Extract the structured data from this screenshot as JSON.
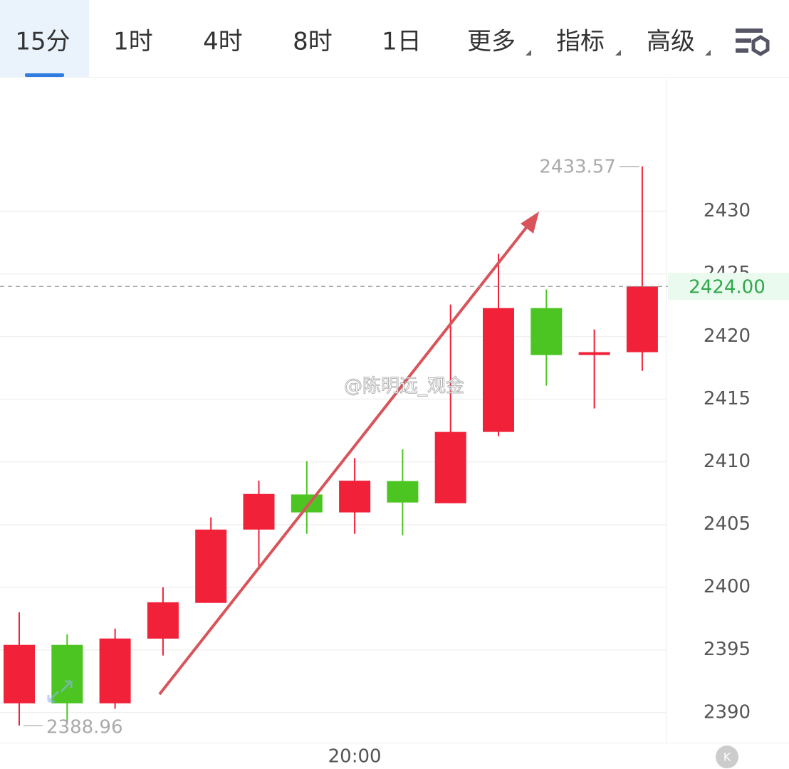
{
  "tabs": [
    "15分",
    "1时",
    "4时",
    "8时",
    "1日",
    "更多",
    "指标",
    "高级"
  ],
  "selected_tab": 0,
  "watermark": "@陈明远_观金",
  "chart_data": {
    "type": "candlestick",
    "categories": [
      null,
      null,
      null,
      null,
      null,
      null,
      null,
      "20:00",
      null,
      null,
      null,
      null,
      null,
      null
    ],
    "open": [
      2390.74,
      2395.4,
      2390.74,
      2395.9,
      2398.75,
      2404.6,
      2407.4,
      2405.97,
      2408.47,
      2406.7,
      2412.39,
      2422.27,
      2418.64,
      2418.75
    ],
    "high": [
      2398.0,
      2396.25,
      2396.7,
      2400.0,
      2405.57,
      2408.5,
      2410.06,
      2410.3,
      2411.0,
      2422.56,
      2426.6,
      2423.75,
      2420.57,
      2433.57
    ],
    "low": [
      2388.96,
      2389.2,
      2390.3,
      2394.55,
      2398.75,
      2401.4,
      2404.26,
      2404.26,
      2404.15,
      2406.7,
      2412.05,
      2416.08,
      2414.26,
      2417.27
    ],
    "close": [
      2395.4,
      2390.74,
      2395.91,
      2398.8,
      2404.6,
      2407.44,
      2405.97,
      2408.5,
      2406.76,
      2412.39,
      2422.27,
      2418.52,
      2418.64,
      2424.0
    ],
    "up_color": "#f02138",
    "down_color": "#4cc523",
    "ylim": [
      2387.6,
      2440.6
    ],
    "yticks": [
      2390,
      2395,
      2400,
      2405,
      2410,
      2415,
      2420,
      2425,
      2430
    ],
    "grid": true,
    "last_price": {
      "value": 2424,
      "label": "2424.00"
    }
  }
}
